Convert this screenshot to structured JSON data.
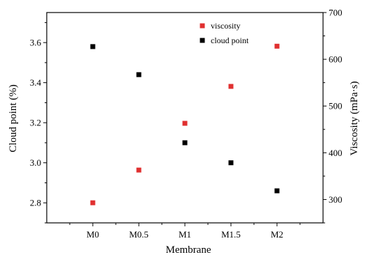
{
  "chart_data": {
    "type": "scatter",
    "categories": [
      "M0",
      "M0.5",
      "M1",
      "M1.5",
      "M2"
    ],
    "xlabel": "Membrane",
    "ylabel_left": "Cloud point (%)",
    "ylabel_right": "Viscosity (mPa·s)",
    "ylim_left": [
      2.7,
      3.75
    ],
    "ylim_right": [
      250,
      700
    ],
    "yticks_left": [
      2.8,
      3.0,
      3.2,
      3.4,
      3.6
    ],
    "yticks_left_labels": [
      "2.8",
      "3.0",
      "3.2",
      "3.4",
      "3.6"
    ],
    "yticks_right": [
      300,
      400,
      500,
      600,
      700
    ],
    "yticks_right_labels": [
      "300",
      "400",
      "500",
      "600",
      "700"
    ],
    "grid": false,
    "legend_position": "top-right",
    "series": [
      {
        "name": "viscosity",
        "axis": "right",
        "color": "#e03030",
        "values": [
          293,
          363,
          463,
          542,
          628
        ]
      },
      {
        "name": "cloud point",
        "axis": "left",
        "color": "#000000",
        "values": [
          3.58,
          3.44,
          3.1,
          3.0,
          2.86
        ]
      }
    ]
  }
}
